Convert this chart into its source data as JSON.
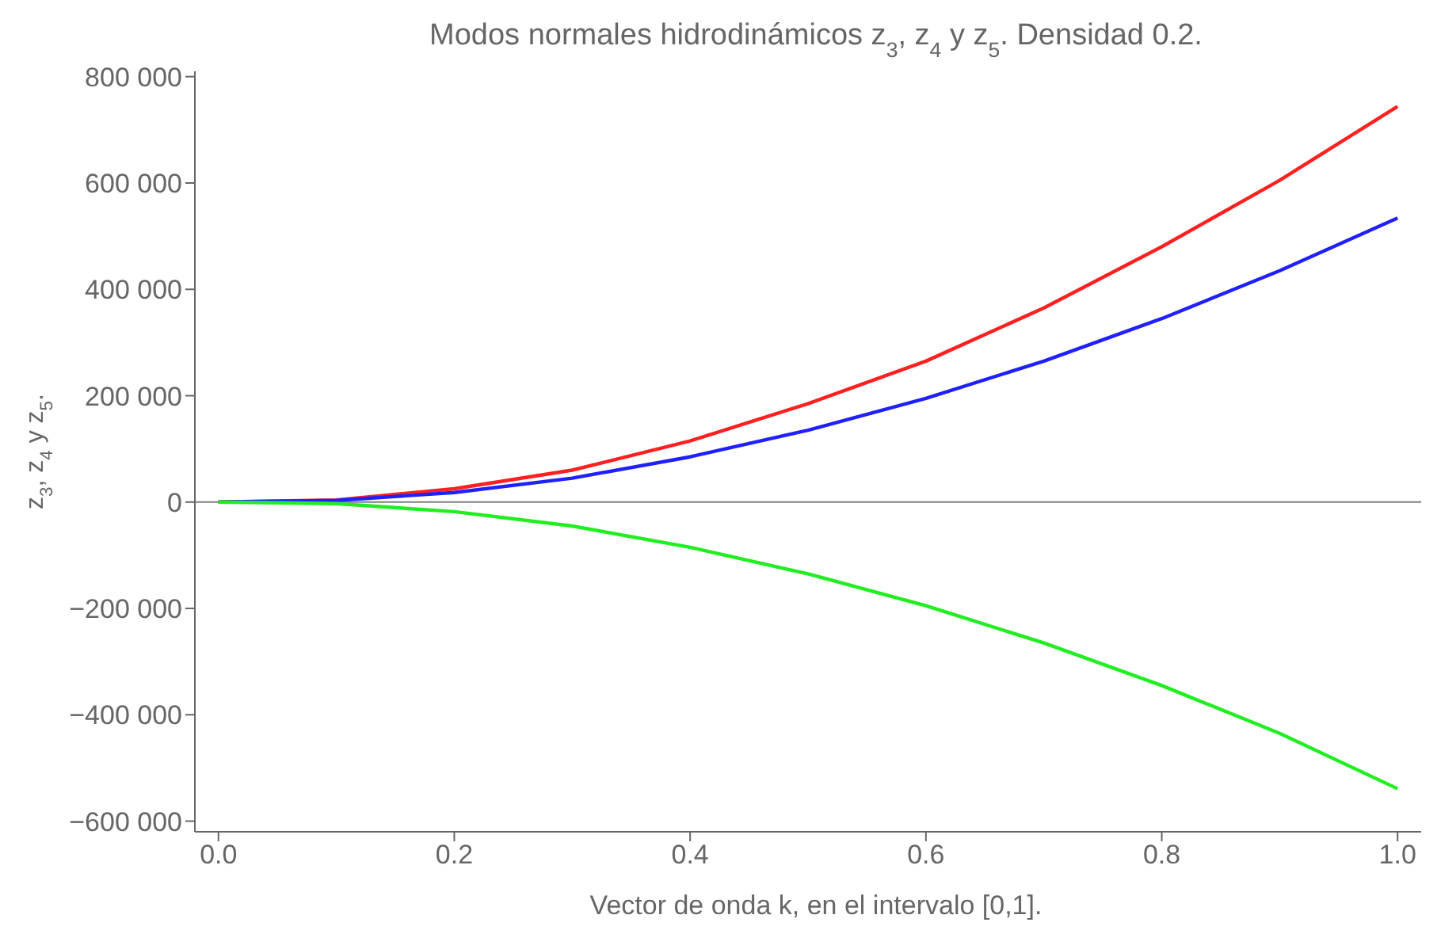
{
  "chart_data": {
    "type": "line",
    "title": "Modos normales hidrodinámicos z$_{3}$, z$_{4}$ y z$_{5}$. Densidad 0.2.",
    "xlabel": "Vector de onda k, en el intervalo [0,1].",
    "ylabel": "z$_{3}$, z$_{4}$ y z$_{5}$.",
    "x": [
      0,
      0.1,
      0.2,
      0.3,
      0.4,
      0.5,
      0.6,
      0.7,
      0.8,
      0.9,
      1.0
    ],
    "series": [
      {
        "color": "#ff2020",
        "values": [
          0,
          4000,
          25000,
          60000,
          115000,
          185000,
          265000,
          365000,
          480000,
          605000,
          744000
        ]
      },
      {
        "color": "#2020ff",
        "values": [
          0,
          3000,
          18000,
          45000,
          85000,
          135000,
          195000,
          265000,
          345000,
          435000,
          534000
        ]
      },
      {
        "color": "#20ee20",
        "values": [
          0,
          -3000,
          -18000,
          -45000,
          -85000,
          -135000,
          -195000,
          -265000,
          -345000,
          -435000,
          -539000
        ]
      }
    ],
    "xlim": [
      -0.02,
      1.02
    ],
    "xticks": [
      {
        "value": 0,
        "label": "0.0"
      },
      0.2,
      0.4,
      0.6,
      0.8,
      {
        "value": 1,
        "label": "1.0"
      }
    ],
    "ylim": [
      -620000,
      810000
    ],
    "yticks": [
      {
        "value": -600000,
        "label": "−600 000"
      },
      {
        "value": -400000,
        "label": "−400 000"
      },
      {
        "value": -200000,
        "label": "−200 000"
      },
      0,
      {
        "value": 200000,
        "label": "200 000"
      },
      {
        "value": 400000,
        "label": "400 000"
      },
      {
        "value": 600000,
        "label": "600 000"
      },
      {
        "value": 800000,
        "label": "800 000"
      }
    ],
    "ref_lines": [
      {
        "axis": "y",
        "value": 0,
        "color": "#808080"
      }
    ],
    "grid": false,
    "legend": false,
    "marker": "none",
    "line_style": "solid"
  }
}
